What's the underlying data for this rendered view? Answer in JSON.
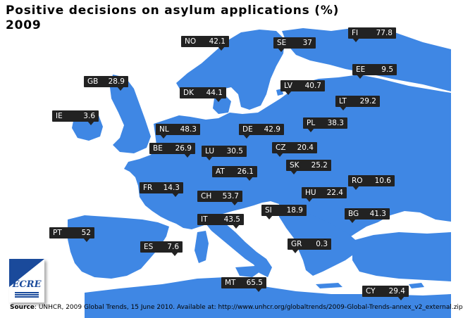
{
  "title_line1": "Positive decisions on asylum applications (%)",
  "title_line2": "2009",
  "colors": {
    "land": "#3f87e4",
    "sea": "#ffffff",
    "label_bg": "#222222",
    "label_text": "#ffffff",
    "logo_blue": "#1a4a9b"
  },
  "countries": [
    {
      "code": "NO",
      "value": "42.1"
    },
    {
      "code": "SE",
      "value": "37"
    },
    {
      "code": "FI",
      "value": "77.8"
    },
    {
      "code": "EE",
      "value": "9.5"
    },
    {
      "code": "LV",
      "value": "40.7"
    },
    {
      "code": "LT",
      "value": "29.2"
    },
    {
      "code": "GB",
      "value": "28.9"
    },
    {
      "code": "DK",
      "value": "44.1"
    },
    {
      "code": "IE",
      "value": "3.6"
    },
    {
      "code": "NL",
      "value": "48.3"
    },
    {
      "code": "DE",
      "value": "42.9"
    },
    {
      "code": "PL",
      "value": "38.3"
    },
    {
      "code": "BE",
      "value": "26.9"
    },
    {
      "code": "LU",
      "value": "30.5"
    },
    {
      "code": "CZ",
      "value": "20.4"
    },
    {
      "code": "SK",
      "value": "25.2"
    },
    {
      "code": "AT",
      "value": "26.1"
    },
    {
      "code": "RO",
      "value": "10.6"
    },
    {
      "code": "FR",
      "value": "14.3"
    },
    {
      "code": "HU",
      "value": "22.4"
    },
    {
      "code": "CH",
      "value": "53.7"
    },
    {
      "code": "SI",
      "value": "18.9"
    },
    {
      "code": "BG",
      "value": "41.3"
    },
    {
      "code": "IT",
      "value": "43.5"
    },
    {
      "code": "PT",
      "value": "52"
    },
    {
      "code": "ES",
      "value": "7.6"
    },
    {
      "code": "GR",
      "value": "0.3"
    },
    {
      "code": "MT",
      "value": "65.5"
    },
    {
      "code": "CY",
      "value": "29.4"
    }
  ],
  "logo_text": "ECRE",
  "source": {
    "label": "Source",
    "text": ": UNHCR, 2009 Global Trends, 15 June 2010. Available at: http://www.unhcr.org/globaltrends/2009-Global-Trends-annex_v2_external.zip"
  }
}
